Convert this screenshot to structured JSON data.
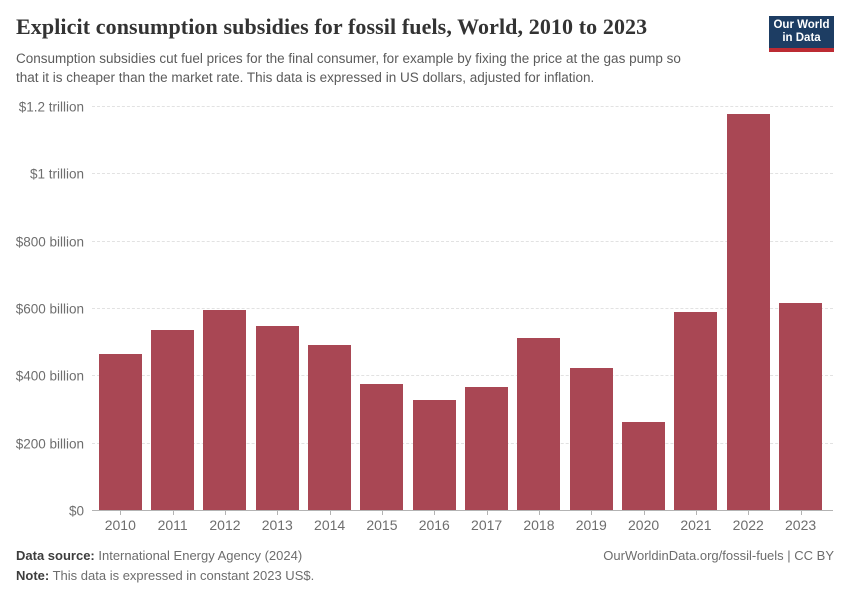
{
  "header": {
    "title": "Explicit consumption subsidies for fossil fuels, World, 2010 to 2023",
    "subtitle": "Consumption subsidies cut fuel prices for the final consumer, for example by fixing the price at the gas pump so that it is cheaper than the market rate. This data is expressed in US dollars, adjusted for inflation.",
    "logo": {
      "line1": "Our World",
      "line2": "in Data"
    }
  },
  "chart_data": {
    "type": "bar",
    "title": "Explicit consumption subsidies for fossil fuels, World, 2010 to 2023",
    "categories": [
      "2010",
      "2011",
      "2012",
      "2013",
      "2014",
      "2015",
      "2016",
      "2017",
      "2018",
      "2019",
      "2020",
      "2021",
      "2022",
      "2023"
    ],
    "values": [
      464,
      536,
      595,
      547,
      489,
      375,
      328,
      365,
      512,
      421,
      262,
      587,
      1176,
      616
    ],
    "values_unit": "billion constant 2023 US$",
    "xlabel": "",
    "ylabel": "",
    "ylim": [
      0,
      1200
    ],
    "yticks": [
      {
        "value": 0,
        "label": "$0"
      },
      {
        "value": 200,
        "label": "$200 billion"
      },
      {
        "value": 400,
        "label": "$400 billion"
      },
      {
        "value": 600,
        "label": "$600 billion"
      },
      {
        "value": 800,
        "label": "$800 billion"
      },
      {
        "value": 1000,
        "label": "$1 trillion"
      },
      {
        "value": 1200,
        "label": "$1.2 trillion"
      }
    ],
    "grid": "horizontal-dashed",
    "legend": "none",
    "bar_color": "#a94754"
  },
  "colors": {
    "bar": "#a94754",
    "grid": "#e2e2e2",
    "axis": "#b3b3b3",
    "tick_label": "#6e6e6e",
    "title_text": "#333333",
    "subtitle_text": "#5b5b5b",
    "logo_bg": "#1d3d63",
    "logo_underline": "#bc2b33"
  },
  "footer": {
    "source_label": "Data source:",
    "source_value": "International Energy Agency (2024)",
    "note_label": "Note:",
    "note_value": "This data is expressed in constant 2023 US$.",
    "credit": "OurWorldinData.org/fossil-fuels | CC BY"
  }
}
